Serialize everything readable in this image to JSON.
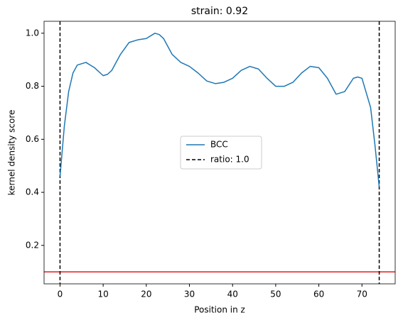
{
  "chart_data": {
    "type": "line",
    "title": "strain: 0.92",
    "xlabel": "Position in z",
    "ylabel": "kernel density score",
    "x": [
      0,
      1,
      2,
      3,
      4,
      6,
      8,
      10,
      11,
      12,
      14,
      16,
      18,
      20,
      22,
      23,
      24,
      26,
      28,
      30,
      32,
      34,
      36,
      38,
      40,
      42,
      44,
      46,
      48,
      50,
      52,
      54,
      56,
      58,
      60,
      62,
      64,
      66,
      68,
      69,
      70,
      72,
      73,
      74
    ],
    "series": [
      {
        "name": "BCC",
        "color": "#1f77b4",
        "values": [
          0.46,
          0.65,
          0.78,
          0.85,
          0.88,
          0.89,
          0.87,
          0.84,
          0.845,
          0.86,
          0.92,
          0.965,
          0.975,
          0.98,
          1.0,
          0.995,
          0.98,
          0.92,
          0.89,
          0.875,
          0.85,
          0.82,
          0.81,
          0.815,
          0.83,
          0.86,
          0.875,
          0.865,
          0.83,
          0.8,
          0.8,
          0.815,
          0.85,
          0.875,
          0.87,
          0.83,
          0.77,
          0.78,
          0.83,
          0.835,
          0.83,
          0.72,
          0.58,
          0.42
        ]
      }
    ],
    "vlines": {
      "name": "ratio: 1.0",
      "color": "#000000",
      "values": [
        0,
        74
      ]
    },
    "hlines": [
      {
        "value": 0.1,
        "color": "#e41a1c"
      }
    ],
    "xlim": [
      -3.7,
      77.7
    ],
    "ylim": [
      0.055,
      1.045
    ],
    "xticks": [
      0,
      10,
      20,
      30,
      40,
      50,
      60,
      70
    ],
    "yticks": [
      {
        "value": 0.2,
        "label": "0.2"
      },
      {
        "value": 0.4,
        "label": "0.4"
      },
      {
        "value": 0.6,
        "label": "0.6"
      },
      {
        "value": 0.8,
        "label": "0.8"
      },
      {
        "value": 1.0,
        "label": "1.0"
      }
    ],
    "legend": "center"
  }
}
